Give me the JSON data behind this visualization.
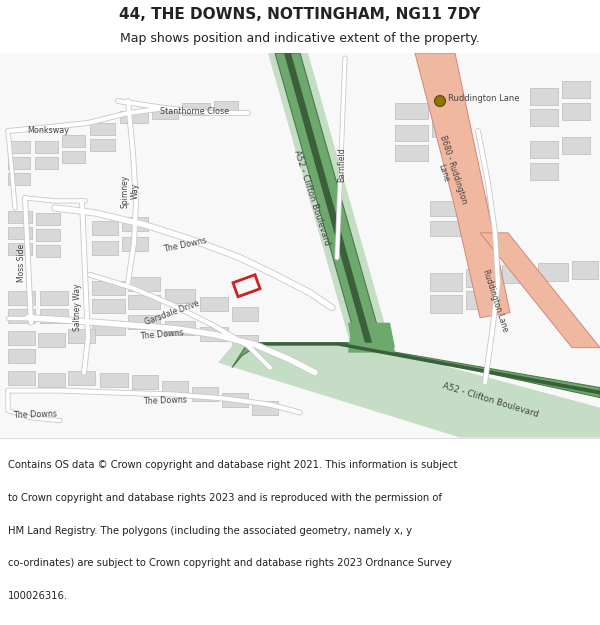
{
  "title": "44, THE DOWNS, NOTTINGHAM, NG11 7DY",
  "subtitle": "Map shows position and indicative extent of the property.",
  "footer_lines": [
    "Contains OS data © Crown copyright and database right 2021. This information is subject",
    "to Crown copyright and database rights 2023 and is reproduced with the permission of",
    "HM Land Registry. The polygons (including the associated geometry, namely x, y",
    "co-ordinates) are subject to Crown copyright and database rights 2023 Ordnance Survey",
    "100026316."
  ],
  "bg_color": "#f2f2f2",
  "map_bg": "#f8f8f8",
  "white": "#ffffff",
  "road_a52_green": "#6da86d",
  "road_a52_dark": "#4a7a4a",
  "road_a52_center": "#3a5f3a",
  "road_a52_light": "#c5ddc5",
  "road_b680_fill": "#f0b8a0",
  "road_b680_edge": "#d08878",
  "road_minor_fill": "#ffffff",
  "road_minor_edge": "#c8c8c8",
  "building_fill": "#d8d8d8",
  "building_edge": "#bbbbbb",
  "property_edge": "#cc2222",
  "dot_fill": "#8b7700",
  "text_color": "#222222",
  "label_color": "#444444",
  "title_fs": 11,
  "subtitle_fs": 9,
  "footer_fs": 7.2,
  "label_fs": 6.0
}
